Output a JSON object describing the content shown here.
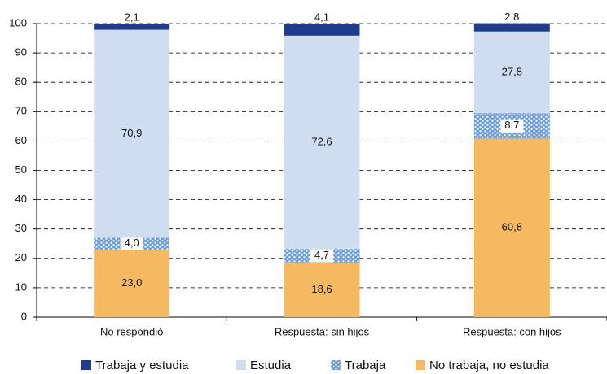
{
  "chart_data": {
    "type": "stacked_bar",
    "categories": [
      "No respondió",
      "Respuesta: sin hijos",
      "Respuesta: con hijos"
    ],
    "series": [
      {
        "name": "Trabaja y estudia",
        "color": "#1f3d8c",
        "values": [
          2.1,
          4.1,
          2.8
        ],
        "value_labels": [
          "2,1",
          "4,1",
          "2,8"
        ]
      },
      {
        "name": "Estudia",
        "color": "#d0dcf0",
        "values": [
          70.9,
          72.6,
          27.8
        ],
        "value_labels": [
          "70,9",
          "72,6",
          "27,8"
        ]
      },
      {
        "name": "Trabaja",
        "color": "#6f9fd8",
        "values": [
          4.0,
          4.7,
          8.7
        ],
        "value_labels": [
          "4,0",
          "4,7",
          "8,7"
        ]
      },
      {
        "name": "No trabaja, no estudia",
        "color": "#f5b961",
        "values": [
          23.0,
          18.6,
          60.8
        ],
        "value_labels": [
          "23,0",
          "18,6",
          "60,8"
        ]
      }
    ],
    "ylim": [
      0,
      100
    ],
    "yticks": [
      0,
      10,
      20,
      30,
      40,
      50,
      60,
      70,
      80,
      90,
      100
    ],
    "grid": true
  }
}
